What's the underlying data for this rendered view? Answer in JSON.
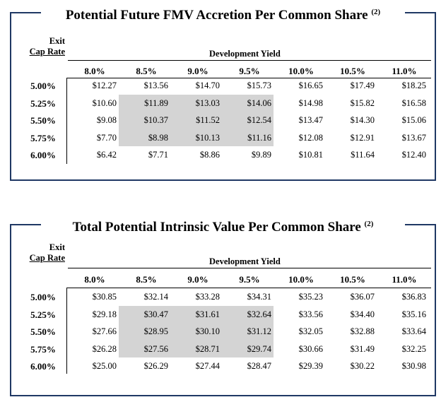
{
  "columns": [
    "8.0%",
    "8.5%",
    "9.0%",
    "9.5%",
    "10.0%",
    "10.5%",
    "11.0%"
  ],
  "rows": [
    "5.00%",
    "5.25%",
    "5.50%",
    "5.75%",
    "6.00%"
  ],
  "exit_label_line1": "Exit",
  "exit_label_line2": "Cap Rate",
  "dev_yield_label": "Development Yield",
  "tables": [
    {
      "title": "Potential Future FMV Accretion Per Common Share",
      "footnote": "(2)",
      "values": [
        [
          "$12.27",
          "$13.56",
          "$14.70",
          "$15.73",
          "$16.65",
          "$17.49",
          "$18.25"
        ],
        [
          "$10.60",
          "$11.89",
          "$13.03",
          "$14.06",
          "$14.98",
          "$15.82",
          "$16.58"
        ],
        [
          "$9.08",
          "$10.37",
          "$11.52",
          "$12.54",
          "$13.47",
          "$14.30",
          "$15.06"
        ],
        [
          "$7.70",
          "$8.98",
          "$10.13",
          "$11.16",
          "$12.08",
          "$12.91",
          "$13.67"
        ],
        [
          "$6.42",
          "$7.71",
          "$8.86",
          "$9.89",
          "$10.81",
          "$11.64",
          "$12.40"
        ]
      ]
    },
    {
      "title": "Total Potential Intrinsic Value Per Common Share",
      "footnote": "(2)",
      "values": [
        [
          "$30.85",
          "$32.14",
          "$33.28",
          "$34.31",
          "$35.23",
          "$36.07",
          "$36.83"
        ],
        [
          "$29.18",
          "$30.47",
          "$31.61",
          "$32.64",
          "$33.56",
          "$34.40",
          "$35.16"
        ],
        [
          "$27.66",
          "$28.95",
          "$30.10",
          "$31.12",
          "$32.05",
          "$32.88",
          "$33.64"
        ],
        [
          "$26.28",
          "$27.56",
          "$28.71",
          "$29.74",
          "$30.66",
          "$31.49",
          "$32.25"
        ],
        [
          "$25.00",
          "$26.29",
          "$27.44",
          "$28.47",
          "$29.39",
          "$30.22",
          "$30.98"
        ]
      ]
    }
  ],
  "highlight": "#d4d4d4",
  "frame_color": "#1f3864"
}
